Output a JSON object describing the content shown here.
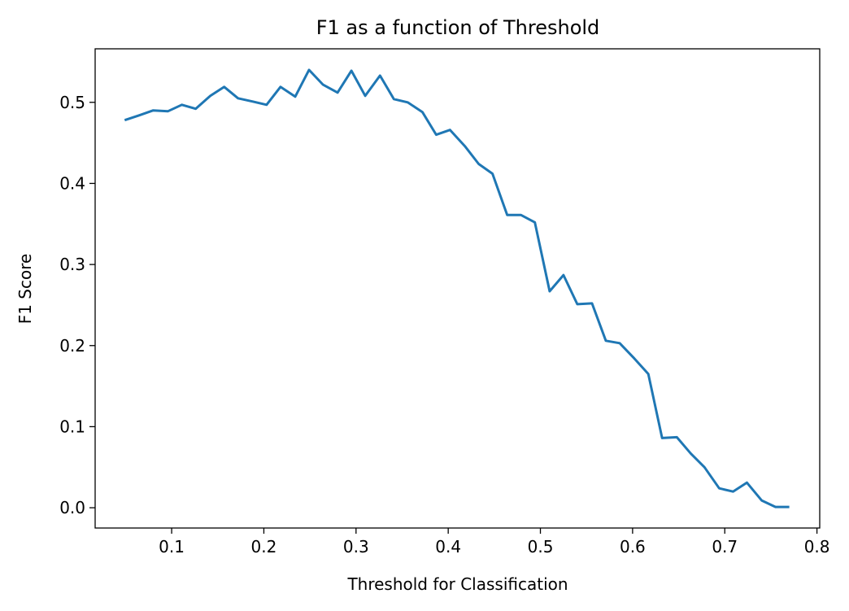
{
  "chart_data": {
    "type": "line",
    "title": "F1 as a function of Threshold",
    "xlabel": "Threshold for Classification",
    "ylabel": "F1 Score",
    "xlim": [
      0.017,
      0.803
    ],
    "ylim": [
      -0.025,
      0.566
    ],
    "x_ticks": [
      0.1,
      0.2,
      0.3,
      0.4,
      0.5,
      0.6,
      0.7,
      0.8
    ],
    "x_tick_labels": [
      "0.1",
      "0.2",
      "0.3",
      "0.4",
      "0.5",
      "0.6",
      "0.7",
      "0.8"
    ],
    "y_ticks": [
      0.0,
      0.1,
      0.2,
      0.3,
      0.4,
      0.5
    ],
    "y_tick_labels": [
      "0.0",
      "0.1",
      "0.2",
      "0.3",
      "0.4",
      "0.5"
    ],
    "grid": false,
    "line_color": "#1f77b4",
    "series": [
      {
        "name": "",
        "x": [
          0.049,
          0.065,
          0.08,
          0.096,
          0.111,
          0.126,
          0.142,
          0.157,
          0.172,
          0.188,
          0.203,
          0.218,
          0.234,
          0.249,
          0.264,
          0.28,
          0.295,
          0.31,
          0.326,
          0.341,
          0.356,
          0.372,
          0.387,
          0.402,
          0.418,
          0.433,
          0.448,
          0.464,
          0.479,
          0.494,
          0.51,
          0.525,
          0.54,
          0.556,
          0.571,
          0.586,
          0.602,
          0.617,
          0.632,
          0.648,
          0.663,
          0.678,
          0.694,
          0.709,
          0.724,
          0.74,
          0.755,
          0.77
        ],
        "values": [
          0.478,
          0.484,
          0.49,
          0.489,
          0.497,
          0.492,
          0.508,
          0.519,
          0.505,
          0.501,
          0.497,
          0.519,
          0.507,
          0.54,
          0.522,
          0.512,
          0.539,
          0.508,
          0.533,
          0.504,
          0.5,
          0.488,
          0.46,
          0.466,
          0.446,
          0.424,
          0.412,
          0.361,
          0.361,
          0.352,
          0.267,
          0.287,
          0.251,
          0.252,
          0.206,
          0.203,
          0.184,
          0.165,
          0.086,
          0.087,
          0.067,
          0.05,
          0.024,
          0.02,
          0.031,
          0.009,
          0.001,
          0.001
        ]
      }
    ]
  }
}
